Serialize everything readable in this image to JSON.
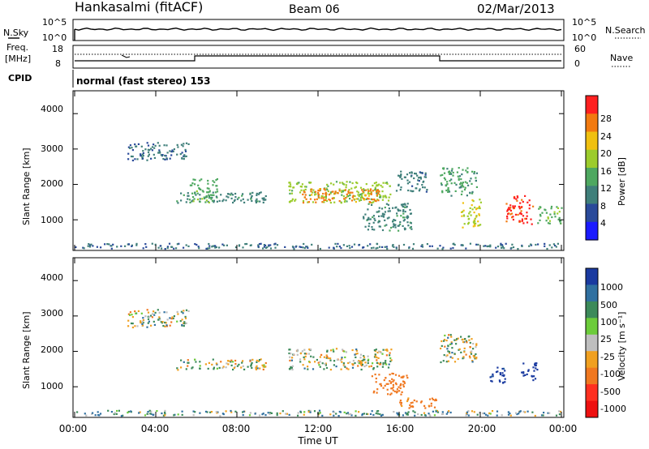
{
  "header": {
    "station": "Hankasalmi (fitACF)",
    "beam": "Beam 06",
    "date": "02/Mar/2013"
  },
  "noise_panel": {
    "left_label": "N.Sky",
    "right_label": "N.Search",
    "left_ticks": [
      "10^5",
      "10^0"
    ],
    "right_ticks": [
      "10^5",
      "10^0"
    ]
  },
  "freq_panel": {
    "left_label_1": "Freq.",
    "left_label_2": "[MHz]",
    "left_ticks": [
      "18",
      "8"
    ],
    "right_ticks": [
      "60",
      "0"
    ],
    "right_label": "Nave"
  },
  "cpid": {
    "label": "CPID",
    "text": "normal (fast stereo) 153"
  },
  "axes": {
    "ylabel": "Slant Range [km]",
    "xlabel": "Time UT",
    "y_ticks": [
      "4000",
      "3000",
      "2000",
      "1000"
    ],
    "x_ticks": [
      "00:00",
      "04:00",
      "08:00",
      "12:00",
      "16:00",
      "20:00",
      "00:00"
    ]
  },
  "power_bar": {
    "label": "Power [dB]",
    "ticks": [
      "28",
      "24",
      "20",
      "16",
      "12",
      "8",
      "4"
    ],
    "colors": [
      "#1a1aff",
      "#2a4a9a",
      "#3f7f7a",
      "#4ea860",
      "#9ccc2c",
      "#f0c010",
      "#f27a10",
      "#ff2020"
    ]
  },
  "velocity_bar": {
    "label": "Velocity [m s⁻¹]",
    "ticks": [
      "1000",
      "500",
      "100",
      "25",
      "-25",
      "-100",
      "-500",
      "-1000"
    ],
    "colors": [
      "#1a3aa0",
      "#3070a0",
      "#3c8a5a",
      "#6ccc3a",
      "#bebebe",
      "#f0a020",
      "#f07820",
      "#ff3020",
      "#ee1010"
    ]
  },
  "chart_data": [
    {
      "type": "heatmap",
      "title": "Power [dB]",
      "xlabel": "Time UT",
      "ylabel": "Slant Range [km]",
      "xlim": [
        "00:00",
        "24:00"
      ],
      "ylim": [
        180,
        4600
      ],
      "clim": [
        0,
        30
      ],
      "regions": [
        {
          "t0": 2.6,
          "t1": 5.6,
          "r0": 2700,
          "r1": 3200,
          "value": 8
        },
        {
          "t0": 5.0,
          "t1": 9.5,
          "r0": 1500,
          "r1": 1800,
          "value": 10
        },
        {
          "t0": 5.6,
          "t1": 7.0,
          "r0": 1500,
          "r1": 2200,
          "value": 14
        },
        {
          "t0": 10.5,
          "t1": 15.6,
          "r0": 1500,
          "r1": 2100,
          "value": 16
        },
        {
          "t0": 11.2,
          "t1": 15.0,
          "r0": 1500,
          "r1": 1900,
          "value": 24
        },
        {
          "t0": 14.2,
          "t1": 16.6,
          "r0": 700,
          "r1": 1500,
          "value": 10
        },
        {
          "t0": 15.8,
          "t1": 17.4,
          "r0": 1800,
          "r1": 2400,
          "value": 9
        },
        {
          "t0": 18.0,
          "t1": 19.8,
          "r0": 1700,
          "r1": 2500,
          "value": 12
        },
        {
          "t0": 19.0,
          "t1": 20.0,
          "r0": 800,
          "r1": 1600,
          "value": 18
        },
        {
          "t0": 21.2,
          "t1": 22.6,
          "r0": 900,
          "r1": 1700,
          "value": 27
        },
        {
          "t0": 22.8,
          "t1": 24.0,
          "r0": 900,
          "r1": 1400,
          "value": 14
        },
        {
          "t0": 0.0,
          "t1": 24.0,
          "r0": 200,
          "r1": 350,
          "value": 8
        }
      ]
    },
    {
      "type": "heatmap",
      "title": "Velocity [m s⁻¹]",
      "xlabel": "Time UT",
      "ylabel": "Slant Range [km]",
      "xlim": [
        "00:00",
        "24:00"
      ],
      "ylim": [
        180,
        4600
      ],
      "clim": [
        -1000,
        1000
      ],
      "regions": [
        {
          "t0": 2.6,
          "t1": 5.6,
          "r0": 2700,
          "r1": 3200,
          "value": 0
        },
        {
          "t0": 5.0,
          "t1": 9.5,
          "r0": 1500,
          "r1": 1800,
          "value": 0
        },
        {
          "t0": 10.5,
          "t1": 15.6,
          "r0": 1500,
          "r1": 2100,
          "value": 0
        },
        {
          "t0": 14.6,
          "t1": 16.4,
          "r0": 800,
          "r1": 1400,
          "value": -300
        },
        {
          "t0": 16.0,
          "t1": 17.8,
          "r0": 400,
          "r1": 700,
          "value": -200
        },
        {
          "t0": 18.0,
          "t1": 19.8,
          "r0": 1700,
          "r1": 2500,
          "value": 0
        },
        {
          "t0": 20.4,
          "t1": 21.2,
          "r0": 1100,
          "r1": 1600,
          "value": 600
        },
        {
          "t0": 22.0,
          "t1": 22.8,
          "r0": 1200,
          "r1": 1700,
          "value": 700
        },
        {
          "t0": 0.0,
          "t1": 24.0,
          "r0": 200,
          "r1": 350,
          "value": 60
        }
      ]
    }
  ]
}
